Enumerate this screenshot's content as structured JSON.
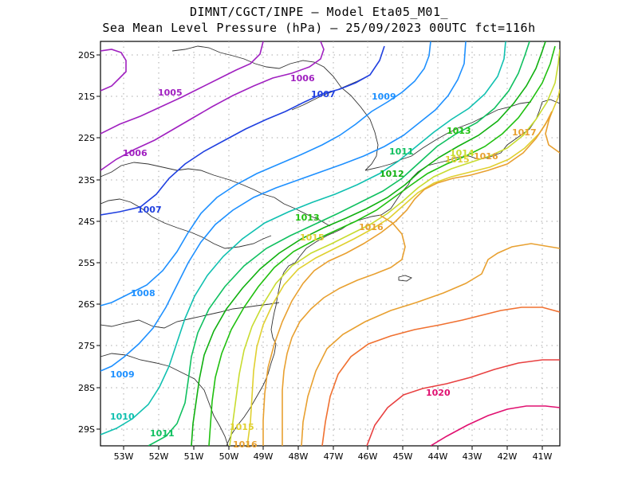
{
  "title": {
    "line1": "DIMNT/CGCT/INPE —  Model Eta05_M01_",
    "line2": "Sea Mean Level Pressure (hPa) — 25/09/2023 00UTC fct=116h"
  },
  "axes": {
    "lat_labels": [
      "20S",
      "21S",
      "22S",
      "23S",
      "24S",
      "25S",
      "26S",
      "27S",
      "28S",
      "29S"
    ],
    "lon_labels": [
      "53W",
      "52W",
      "51W",
      "50W",
      "49W",
      "48W",
      "47W",
      "46W",
      "45W",
      "44W",
      "43W",
      "42W",
      "41W"
    ]
  },
  "contour_labels": [
    {
      "text": "1005",
      "color": "#a020c0"
    },
    {
      "text": "1006",
      "color": "#a020c0"
    },
    {
      "text": "1006",
      "color": "#a020c0"
    },
    {
      "text": "1007",
      "color": "#2040e0"
    },
    {
      "text": "1007",
      "color": "#2040e0"
    },
    {
      "text": "1008",
      "color": "#1e90ff"
    },
    {
      "text": "1009",
      "color": "#1e90ff"
    },
    {
      "text": "1009",
      "color": "#1e90ff"
    },
    {
      "text": "1010",
      "color": "#10c0b0"
    },
    {
      "text": "1011",
      "color": "#10c060"
    },
    {
      "text": "1011",
      "color": "#10c060"
    },
    {
      "text": "1012",
      "color": "#10b010"
    },
    {
      "text": "1013",
      "color": "#20c010"
    },
    {
      "text": "1013",
      "color": "#20c010"
    },
    {
      "text": "1014",
      "color": "#c8dc30"
    },
    {
      "text": "1015",
      "color": "#e0d030"
    },
    {
      "text": "1015",
      "color": "#e0d030"
    },
    {
      "text": "1015",
      "color": "#e0d030"
    },
    {
      "text": "1016",
      "color": "#e8a030"
    },
    {
      "text": "1016",
      "color": "#e8a030"
    },
    {
      "text": "1016",
      "color": "#e8a030"
    },
    {
      "text": "1017",
      "color": "#e8a030"
    },
    {
      "text": "1020",
      "color": "#e01070"
    }
  ]
}
